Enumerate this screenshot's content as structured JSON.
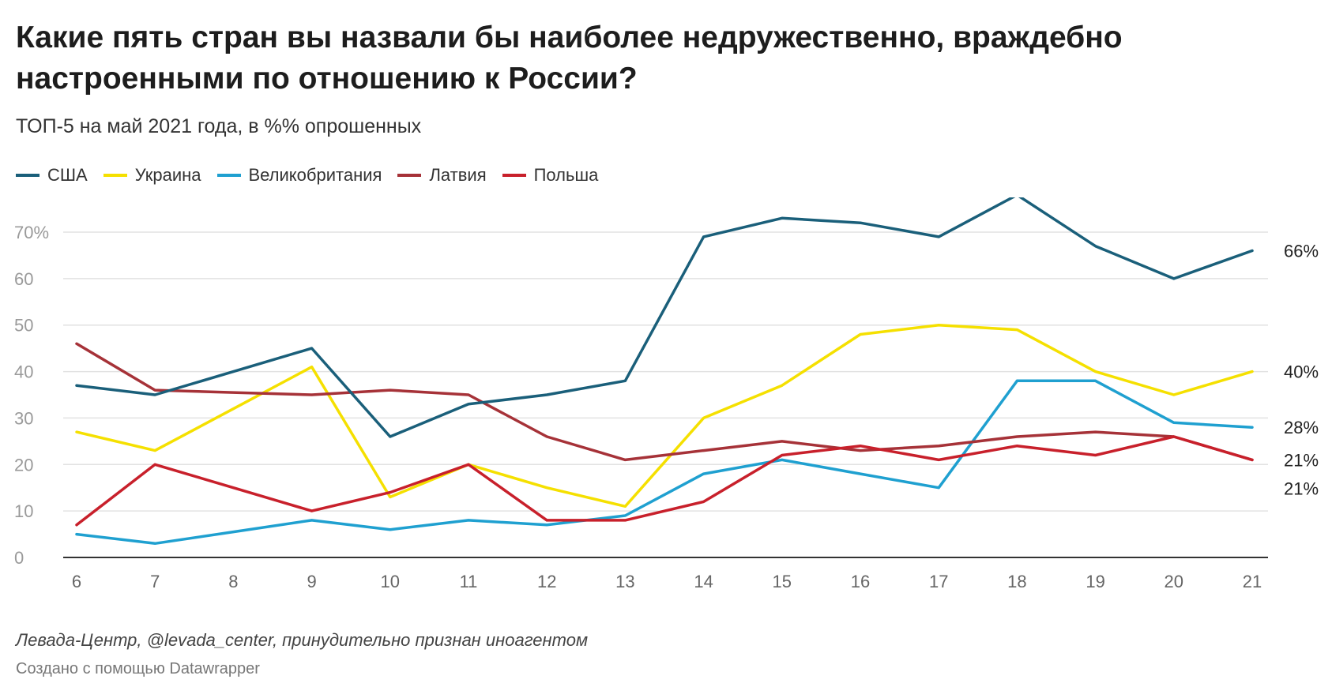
{
  "title": "Какие пять стран вы назвали бы наиболее недружественно, враждебно настроенными по отношению к России?",
  "subtitle": "ТОП-5 на май 2021 года, в %% опрошенных",
  "source": "Левада-Центр, @levada_center, принудительно признан иноагентом",
  "credit": "Создано с помощью Datawrapper",
  "colors": {
    "grid": "#e2e2e2",
    "axis": "#333333",
    "tick_text": "#9a9a9a",
    "x_tick_text": "#666666"
  },
  "chart_data": {
    "type": "line",
    "x": [
      "6",
      "7",
      "8",
      "9",
      "10",
      "11",
      "12",
      "13",
      "14",
      "15",
      "16",
      "17",
      "18",
      "19",
      "20",
      "21"
    ],
    "ylim": [
      0,
      70
    ],
    "yticks": [
      0,
      10,
      20,
      30,
      40,
      50,
      60,
      70
    ],
    "ytick_labels": [
      "0",
      "10",
      "20",
      "30",
      "40",
      "50",
      "60",
      "70%"
    ],
    "grid": true,
    "legend_position": "top-left",
    "series": [
      {
        "name": "США",
        "color": "#1a5f7a",
        "values": [
          37,
          35,
          40,
          45,
          26,
          33,
          35,
          38,
          69,
          73,
          72,
          69,
          78,
          67,
          60,
          66
        ],
        "end_label": "66%"
      },
      {
        "name": "Украина",
        "color": "#f5e000",
        "values": [
          27,
          23,
          32,
          41,
          13,
          20,
          15,
          11,
          30,
          37,
          48,
          50,
          49,
          40,
          35,
          40
        ],
        "end_label": "40%"
      },
      {
        "name": "Великобритания",
        "color": "#1fa0d0",
        "values": [
          5,
          3,
          5.5,
          8,
          6,
          8,
          7,
          9,
          18,
          21,
          18,
          15,
          38,
          38,
          29,
          28
        ],
        "end_label": "28%"
      },
      {
        "name": "Латвия",
        "color": "#a63238",
        "values": [
          46,
          36,
          35.5,
          35,
          36,
          35,
          26,
          21,
          23,
          25,
          23,
          24,
          26,
          27,
          26,
          21
        ],
        "end_label": "21%"
      },
      {
        "name": "Польша",
        "color": "#c8202b",
        "values": [
          7,
          20,
          15,
          10,
          14,
          20,
          8,
          8,
          12,
          22,
          24,
          21,
          24,
          22,
          26,
          21
        ],
        "end_label": "21%"
      }
    ]
  }
}
